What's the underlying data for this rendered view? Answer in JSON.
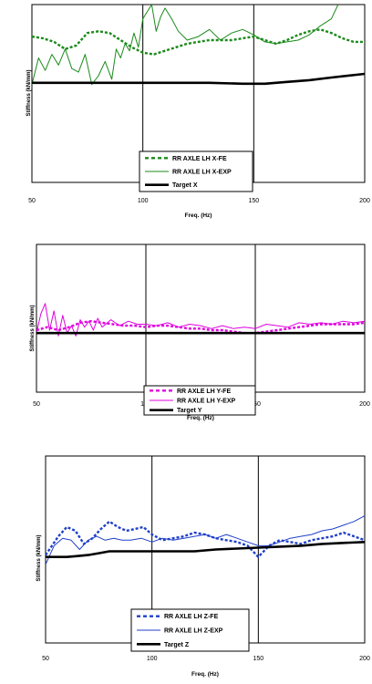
{
  "chart_data": [
    {
      "type": "line",
      "xlabel": "Freq. (Hz)",
      "ylabel": "Stiffness (kN/mm)",
      "xlim": [
        50,
        200
      ],
      "ylim": [
        0,
        100
      ],
      "xticks": [
        50,
        100,
        150,
        200
      ],
      "vgrid": [
        100,
        150
      ],
      "legend": "bottom-center",
      "series": [
        {
          "name": "RR AXLE LH X-FE",
          "color": "#1a8a1a",
          "style": "dashed-thick",
          "x": [
            50,
            55,
            60,
            65,
            70,
            75,
            80,
            85,
            90,
            95,
            100,
            105,
            110,
            115,
            120,
            125,
            130,
            135,
            140,
            145,
            150,
            155,
            160,
            165,
            170,
            175,
            180,
            185,
            190,
            195,
            200
          ],
          "y": [
            82,
            81,
            79,
            75,
            77,
            84,
            85,
            84,
            80,
            76,
            73,
            72,
            74,
            76,
            78,
            79,
            80,
            80,
            80,
            81,
            82,
            80,
            78,
            80,
            83,
            85,
            86,
            84,
            81,
            79,
            79
          ]
        },
        {
          "name": "RR AXLE LH X-EXP",
          "color": "#1a8a1a",
          "style": "thin",
          "x": [
            50,
            53,
            56,
            59,
            62,
            65,
            68,
            71,
            74,
            77,
            80,
            83,
            86,
            88,
            90,
            92,
            94,
            96,
            98,
            100,
            102,
            104,
            106,
            108,
            110,
            113,
            116,
            120,
            125,
            130,
            135,
            140,
            145,
            150,
            155,
            160,
            165,
            170,
            175,
            180,
            185,
            188
          ],
          "y": [
            55,
            70,
            63,
            72,
            66,
            75,
            64,
            62,
            72,
            55,
            60,
            68,
            58,
            75,
            70,
            78,
            74,
            84,
            76,
            92,
            96,
            100,
            85,
            93,
            98,
            92,
            85,
            80,
            82,
            86,
            80,
            84,
            86,
            83,
            79,
            78,
            79,
            80,
            83,
            88,
            92,
            100
          ]
        },
        {
          "name": "Target X",
          "color": "#000000",
          "style": "thick",
          "x": [
            50,
            70,
            90,
            110,
            130,
            145,
            155,
            165,
            175,
            185,
            200
          ],
          "y": [
            56,
            56,
            56,
            56,
            56,
            55.5,
            55.5,
            56.5,
            57.5,
            59,
            61
          ]
        }
      ]
    },
    {
      "type": "line",
      "xlabel": "Freq. (Hz)",
      "ylabel": "Stiffness (kN/mm)",
      "xlim": [
        50,
        200
      ],
      "ylim": [
        0,
        100
      ],
      "xticks": [
        50,
        100,
        150,
        200
      ],
      "vgrid": [
        100,
        150
      ],
      "legend": "bottom-center",
      "series": [
        {
          "name": "RR AXLE LH Y-FE",
          "color": "#e000e0",
          "style": "dashed-thick",
          "x": [
            50,
            55,
            60,
            65,
            70,
            75,
            80,
            85,
            90,
            95,
            100,
            105,
            110,
            115,
            120,
            125,
            130,
            135,
            140,
            145,
            150,
            155,
            160,
            165,
            170,
            175,
            180,
            185,
            190,
            195,
            200
          ],
          "y": [
            42,
            44,
            42,
            44,
            47,
            48,
            47,
            46,
            45,
            45,
            44,
            45,
            45,
            44,
            43,
            43,
            42,
            42,
            41,
            40,
            40,
            41,
            42,
            43,
            44,
            45,
            46,
            46,
            46,
            46,
            47
          ]
        },
        {
          "name": "RR AXLE LH Y-EXP",
          "color": "#e000e0",
          "style": "thin",
          "x": [
            50,
            52,
            54,
            56,
            58,
            60,
            62,
            64,
            66,
            68,
            70,
            72,
            74,
            76,
            78,
            80,
            84,
            88,
            92,
            96,
            100,
            105,
            110,
            115,
            120,
            125,
            130,
            135,
            140,
            145,
            150,
            155,
            160,
            165,
            170,
            175,
            180,
            185,
            190,
            195,
            200
          ],
          "y": [
            40,
            53,
            60,
            42,
            55,
            38,
            52,
            40,
            45,
            38,
            49,
            44,
            48,
            42,
            50,
            44,
            49,
            45,
            48,
            46,
            46,
            45,
            47,
            44,
            46,
            45,
            43,
            45,
            43,
            44,
            43,
            46,
            45,
            44,
            47,
            46,
            47,
            46,
            48,
            47,
            48
          ]
        },
        {
          "name": "Target Y",
          "color": "#000000",
          "style": "thick",
          "x": [
            50,
            80,
            110,
            140,
            150,
            170,
            200
          ],
          "y": [
            40,
            40,
            40,
            40,
            40,
            40,
            40
          ]
        }
      ]
    },
    {
      "type": "line",
      "xlabel": "Freq. (Hz)",
      "ylabel": "Stiffness (kN/mm)",
      "xlim": [
        50,
        200
      ],
      "ylim": [
        0,
        100
      ],
      "xticks": [
        50,
        100,
        150,
        200
      ],
      "vgrid": [
        100,
        150
      ],
      "legend": "bottom-center",
      "series": [
        {
          "name": "RR AXLE LH Z-FE",
          "color": "#2040c8",
          "style": "dashed-thick",
          "x": [
            50,
            53,
            56,
            60,
            64,
            68,
            72,
            76,
            80,
            84,
            88,
            92,
            96,
            100,
            105,
            110,
            115,
            120,
            125,
            130,
            135,
            140,
            145,
            150,
            155,
            160,
            165,
            170,
            175,
            180,
            185,
            190,
            195,
            200
          ],
          "y": [
            47,
            52,
            57,
            62,
            60,
            53,
            56,
            61,
            65,
            62,
            60,
            61,
            62,
            58,
            55,
            56,
            57,
            59,
            58,
            56,
            55,
            54,
            52,
            46,
            52,
            55,
            54,
            53,
            55,
            56,
            57,
            59,
            57,
            55
          ]
        },
        {
          "name": "RR AXLE LH Z-EXP",
          "color": "#2040c8",
          "style": "thin",
          "x": [
            50,
            54,
            58,
            62,
            66,
            70,
            74,
            78,
            82,
            86,
            90,
            95,
            100,
            105,
            110,
            115,
            120,
            125,
            130,
            135,
            140,
            145,
            150,
            155,
            160,
            165,
            170,
            175,
            180,
            185,
            190,
            195,
            200
          ],
          "y": [
            42,
            52,
            56,
            55,
            50,
            55,
            57,
            55,
            56,
            55,
            55,
            56,
            54,
            56,
            55,
            56,
            57,
            58,
            56,
            58,
            56,
            54,
            52,
            52,
            54,
            56,
            57,
            58,
            60,
            61,
            63,
            65,
            68
          ]
        },
        {
          "name": "Target Z",
          "color": "#000000",
          "style": "thick",
          "x": [
            50,
            60,
            65,
            70,
            75,
            80,
            90,
            100,
            110,
            120,
            130,
            140,
            150,
            160,
            170,
            180,
            190,
            200
          ],
          "y": [
            46,
            46,
            46.5,
            47,
            48,
            49,
            49,
            49,
            49,
            49,
            50,
            50.5,
            51,
            51.5,
            52,
            53,
            53.5,
            54
          ]
        }
      ]
    }
  ]
}
